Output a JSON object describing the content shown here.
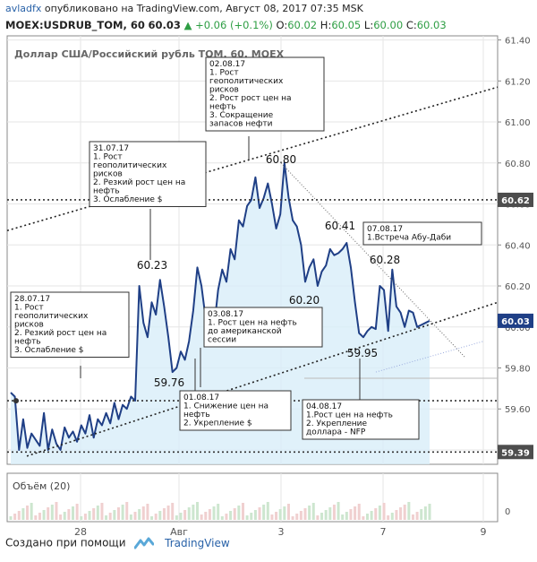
{
  "header": {
    "author": "avladfx",
    "published": "опубликовано на TradingView.com, Август 08, 2017 07:35 MSK",
    "symbol": "MOEX:USDRUB_TOM, 60",
    "last": "60.03",
    "arrow": "▲",
    "change": "+0.06 (+0.1%)",
    "o_label": "O:",
    "o": "60.02",
    "h_label": "H:",
    "h": "60.05",
    "l_label": "L:",
    "l": "60.00",
    "c_label": "C:",
    "c": "60.03"
  },
  "footer": {
    "created": "Создано при помощи",
    "brand": "TradingView"
  },
  "colors": {
    "line": "#1f3f86",
    "area": "#d8eef9",
    "up": "#2e9e44",
    "grid": "#e6e6e6",
    "axis_text": "#555",
    "badge": "#4d4d4d",
    "volume": "#c9d6ea"
  },
  "chart_data": {
    "type": "line",
    "title": "Доллар США/Российский рубль TOM, 60, MOEX",
    "series": [
      {
        "values": [
          59.68,
          59.66,
          59.4,
          59.55,
          59.41,
          59.48,
          59.45,
          59.42,
          59.58,
          59.4,
          59.5,
          59.43,
          59.4,
          59.51,
          59.46,
          59.49,
          59.44,
          59.52,
          59.48,
          59.57,
          59.46,
          59.55,
          59.52,
          59.58,
          59.53,
          59.63,
          59.55,
          59.62,
          59.6,
          59.66,
          59.64,
          60.2,
          60.02,
          59.95,
          60.12,
          60.06,
          60.23,
          60.1,
          59.95,
          59.78,
          59.8,
          59.88,
          59.84,
          59.93,
          60.08,
          60.29,
          60.2,
          60.04,
          59.95,
          59.99,
          60.18,
          60.28,
          60.22,
          60.38,
          60.33,
          60.52,
          60.49,
          60.59,
          60.62,
          60.73,
          60.58,
          60.63,
          60.7,
          60.6,
          60.48,
          60.55,
          60.8,
          60.63,
          60.52,
          60.49,
          60.4,
          60.22,
          60.29,
          60.33,
          60.2,
          60.27,
          60.3,
          60.38,
          60.35,
          60.36,
          60.38,
          60.41,
          60.29,
          60.12,
          59.97,
          59.95,
          59.98,
          60.0,
          59.99,
          60.2,
          60.18,
          59.98,
          60.28,
          60.1,
          60.07,
          60.0,
          60.08,
          60.07,
          60.0,
          60.01,
          60.02,
          60.03
        ]
      }
    ],
    "ylim": [
      59.33,
      61.42
    ],
    "yticks": [
      61.4,
      61.2,
      61.0,
      60.8,
      60.6,
      60.4,
      60.2,
      60.0,
      59.8,
      59.6,
      59.4
    ],
    "ytick_labels": [
      "61.40",
      "61.20",
      "61.00",
      "60.80",
      "60.60",
      "60.40",
      "60.20",
      "60.00",
      "59.80",
      "59.60",
      "59.40"
    ],
    "xtick_labels": [
      "28",
      "Авг",
      "3",
      "7",
      "9"
    ],
    "price_badges": [
      {
        "value": 60.62,
        "label": "60.62",
        "style": "dark"
      },
      {
        "value": 60.03,
        "label": "60.03",
        "style": "blue"
      },
      {
        "value": 59.39,
        "label": "59.39",
        "style": "dark"
      }
    ],
    "levels": [
      60.62,
      59.64,
      59.39
    ],
    "point_labels": [
      {
        "text": "60.80",
        "value": 60.8
      },
      {
        "text": "60.41",
        "value": 60.41
      },
      {
        "text": "60.28",
        "value": 60.28
      },
      {
        "text": "60.23",
        "value": 60.23
      },
      {
        "text": "60.20",
        "value": 60.2
      },
      {
        "text": "59.95",
        "value": 59.95
      },
      {
        "text": "59.76",
        "value": 59.76
      }
    ],
    "annotations": [
      {
        "lines": [
          "02.08.17",
          "1. Рост",
          "геополитических",
          "рисков",
          "2. Рост рост цен на",
          "нефть",
          "3. Сокращение",
          "запасов нефти"
        ]
      },
      {
        "lines": [
          "31.07.17",
          "1. Рост",
          "геополитических",
          "рисков",
          "2. Резкий рост цен на",
          "нефть",
          "3. Ослабление $"
        ]
      },
      {
        "lines": [
          "28.07.17",
          "1. Рост",
          "геополитических",
          "рисков",
          "2. Резкий рост цен на",
          "нефть",
          "3. Ослабление $"
        ]
      },
      {
        "lines": [
          "03.08.17",
          "1. Рост цен на нефть",
          "до американской",
          "сессии"
        ]
      },
      {
        "lines": [
          "01.08.17",
          "1. Снижение цен на",
          "нефть",
          "2. Укрепление $"
        ]
      },
      {
        "lines": [
          "04.08.17",
          "1.Рост цен на нефть",
          "2. Укрепление",
          "доллара - NFP"
        ]
      },
      {
        "lines": [
          "07.08.17",
          "1.Встреча Абу-Даби"
        ]
      }
    ],
    "volume_label": "Объём (20)",
    "volume_ticks": [
      "0"
    ],
    "grid": true
  }
}
